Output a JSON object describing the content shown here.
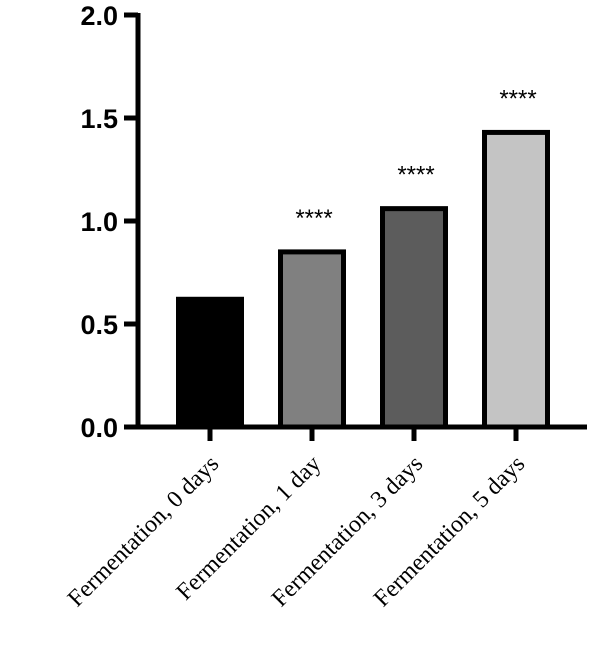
{
  "chart_data": {
    "type": "bar",
    "title": "",
    "xlabel": "",
    "ylabel": "",
    "categories": [
      "Fermentation, 0 days",
      "Fermentation, 1 day",
      "Fermentation, 3 days",
      "Fermentation, 5 days"
    ],
    "values": [
      0.62,
      0.85,
      1.06,
      1.43
    ],
    "significance": [
      "",
      "****",
      "****",
      "****"
    ],
    "bar_colors": [
      "#000000",
      "#808080",
      "#5c5c5c",
      "#c4c4c4"
    ],
    "ylim": [
      0,
      2.0
    ],
    "yticks": [
      "0.0",
      "0.5",
      "1.0",
      "1.5",
      "2.0"
    ],
    "grid": false
  }
}
